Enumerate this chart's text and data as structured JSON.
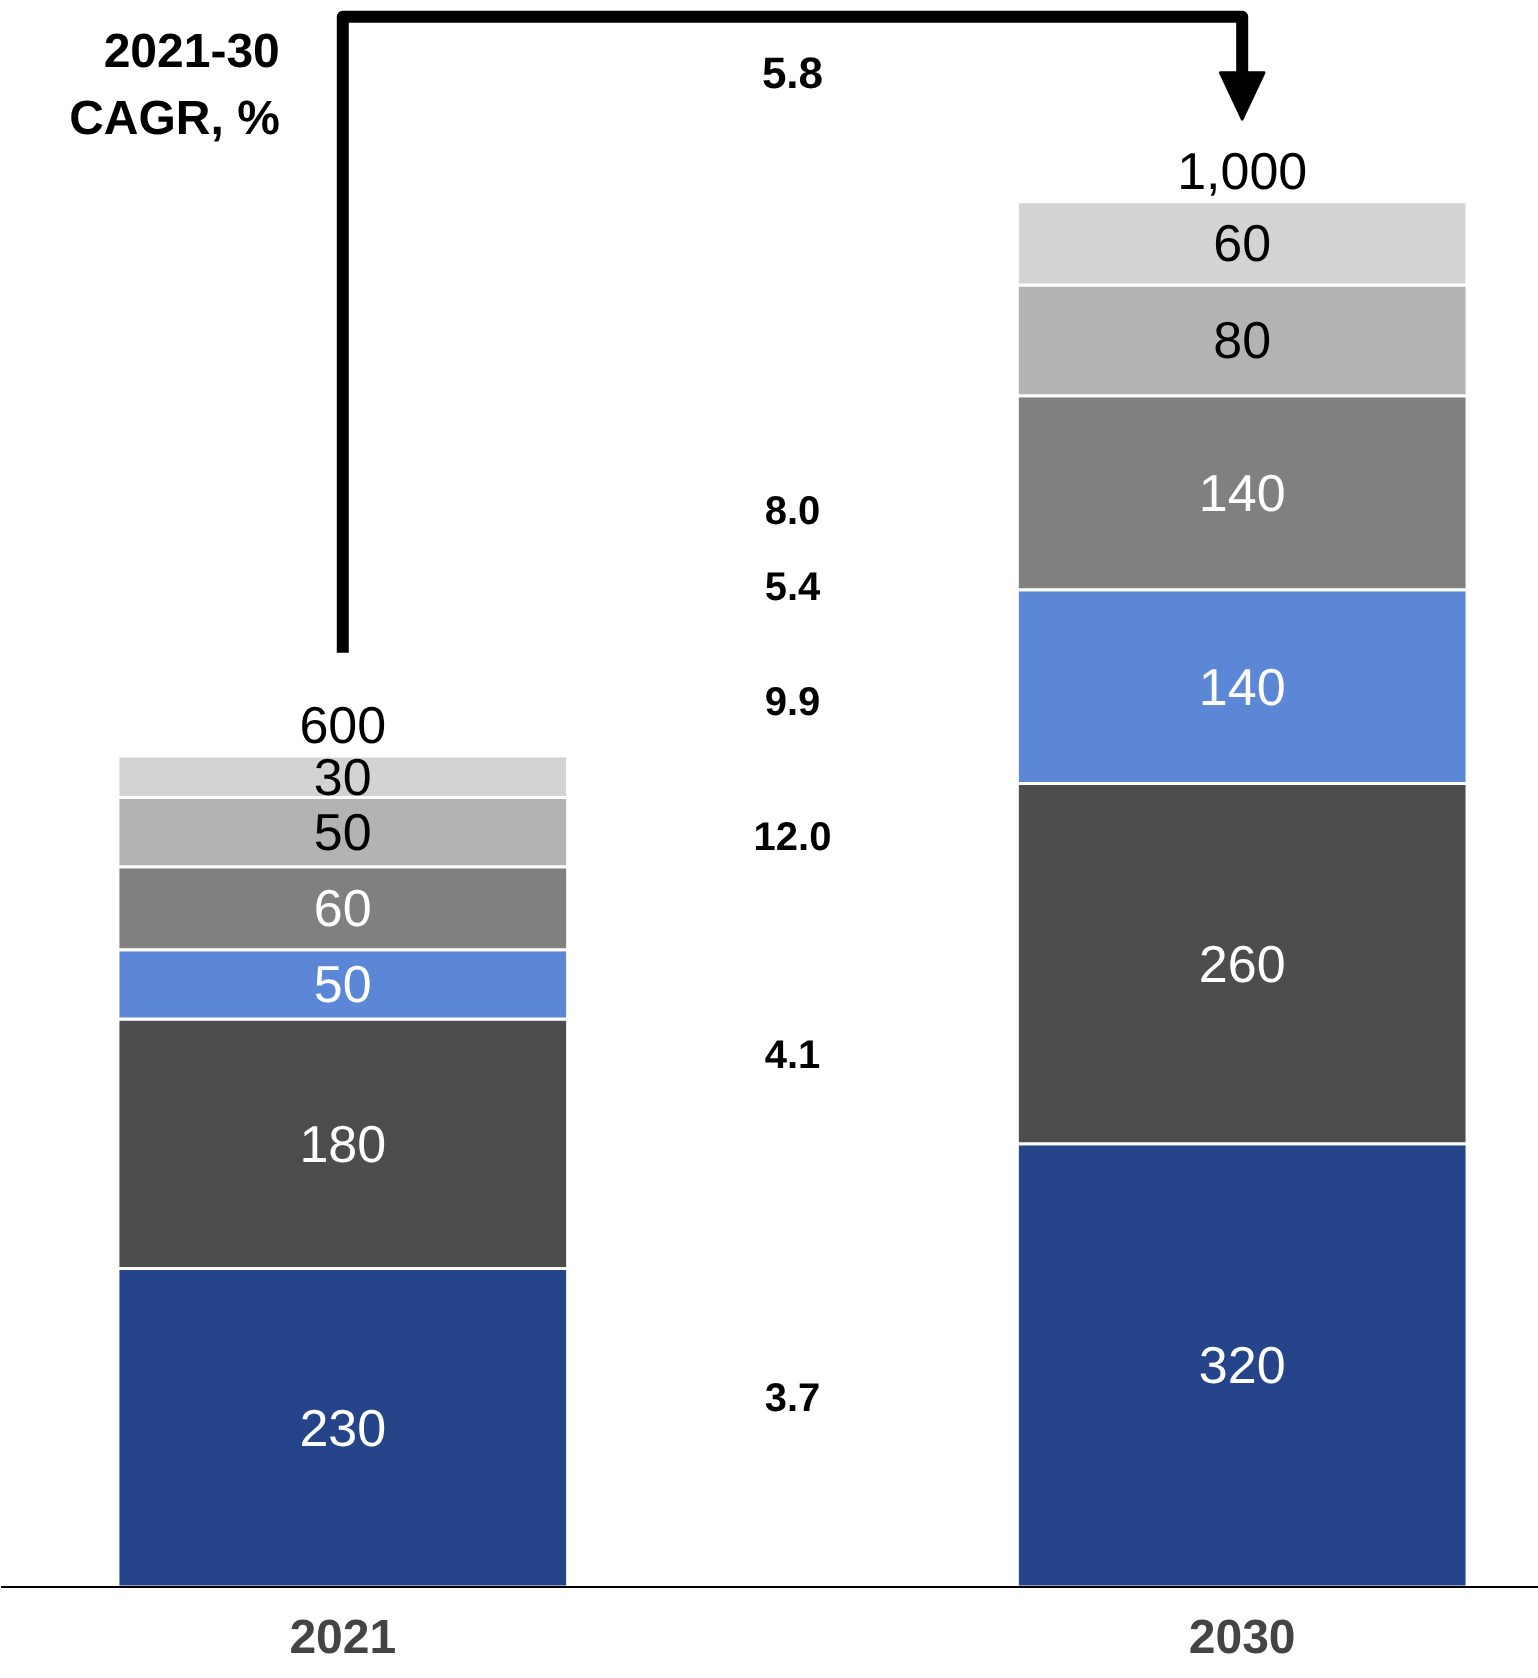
{
  "chart_data": {
    "type": "bar",
    "stacked": true,
    "title": "2021-30 CAGR, %",
    "categories": [
      "2021",
      "2030"
    ],
    "series": [
      {
        "color": "#25448a",
        "values": [
          230,
          320
        ]
      },
      {
        "color": "#4d4d4d",
        "values": [
          180,
          260
        ]
      },
      {
        "color": "#5b87d6",
        "values": [
          50,
          140
        ]
      },
      {
        "color": "#808080",
        "values": [
          60,
          140
        ]
      },
      {
        "color": "#b3b3b3",
        "values": [
          50,
          80
        ]
      },
      {
        "color": "#d3d3d3",
        "values": [
          30,
          60
        ]
      }
    ],
    "data_labels": true,
    "totals": [
      "600",
      "1,000"
    ],
    "annotations": [
      "3.7",
      "4.1",
      "12.0",
      "9.9",
      "5.4",
      "8.0",
      "5.8"
    ],
    "grid": false
  }
}
